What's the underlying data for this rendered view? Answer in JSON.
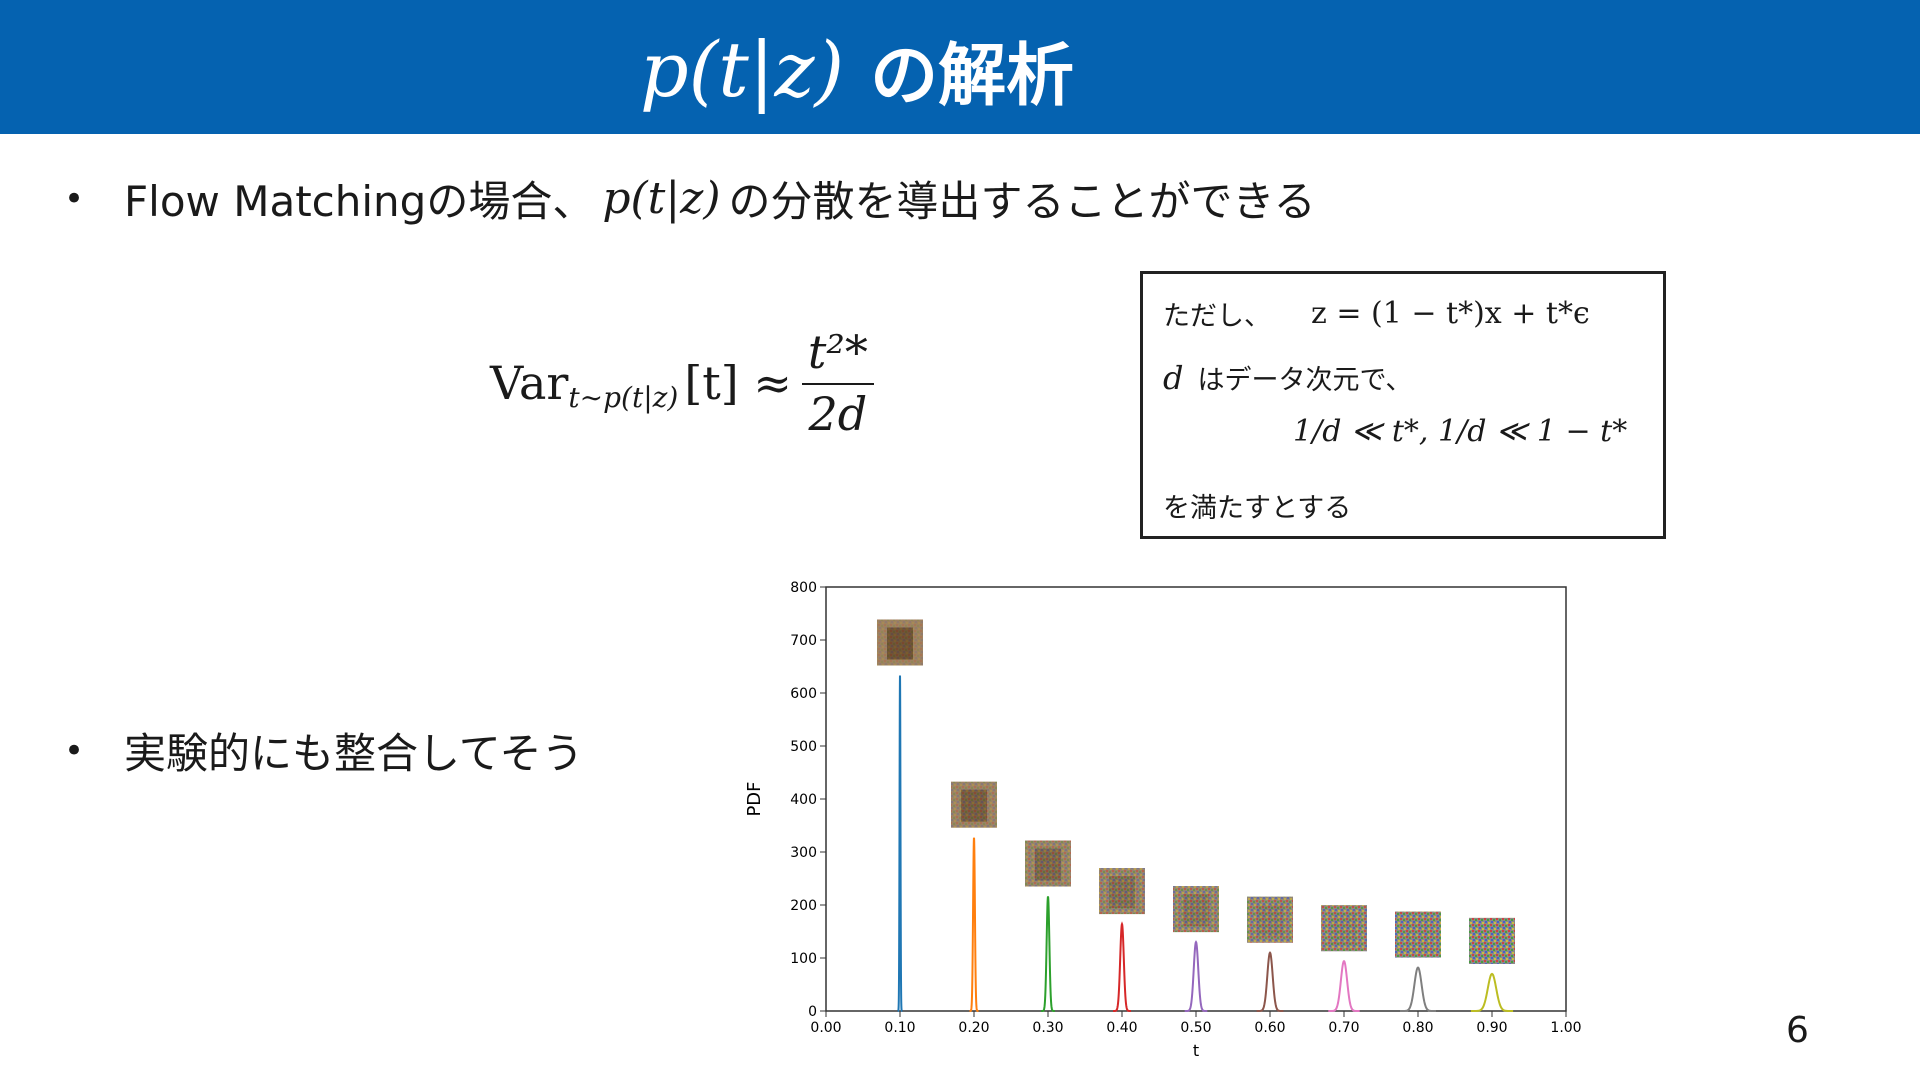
{
  "header": {
    "title_math": "p(t|z)",
    "title_text": "の解析",
    "background": "#0562b0"
  },
  "bullets": [
    {
      "prefix": "Flow Matchingの場合、",
      "math": "p(t|z)",
      "suffix": " の分散を導出することができる"
    },
    {
      "text": "実験的にも整合してそう"
    }
  ],
  "equation": {
    "lhs": "Var",
    "sub": "t∼p(t|z)",
    "arg": "[t] ≈",
    "num": "t²*",
    "den": "2d"
  },
  "note": {
    "line1_text": "ただし、",
    "line1_math": "z = (1 − t*)x + t*ϵ",
    "line2_math": "d",
    "line2_text": "はデータ次元で、",
    "line3_math": "1/d ≪ t*, 1/d ≪ 1 − t*",
    "line4_text": "を満たすとする"
  },
  "chart_data": {
    "type": "line",
    "xlabel": "t",
    "ylabel": "PDF",
    "xlim": [
      0,
      1
    ],
    "ylim": [
      0,
      800
    ],
    "x_ticks": [
      "0.00",
      "0.10",
      "0.20",
      "0.30",
      "0.40",
      "0.50",
      "0.60",
      "0.70",
      "0.80",
      "0.90",
      "1.00"
    ],
    "y_ticks": [
      "0",
      "100",
      "200",
      "300",
      "400",
      "500",
      "600",
      "700",
      "800"
    ],
    "series": [
      {
        "center": 0.1,
        "peak": 633,
        "color": "#1f77b4"
      },
      {
        "center": 0.2,
        "peak": 327,
        "color": "#ff7f0e"
      },
      {
        "center": 0.3,
        "peak": 216,
        "color": "#2ca02c"
      },
      {
        "center": 0.4,
        "peak": 164,
        "color": "#d62728"
      },
      {
        "center": 0.5,
        "peak": 130,
        "color": "#9467bd"
      },
      {
        "center": 0.6,
        "peak": 110,
        "color": "#8c564b"
      },
      {
        "center": 0.7,
        "peak": 94,
        "color": "#e377c2"
      },
      {
        "center": 0.8,
        "peak": 82,
        "color": "#7f7f7f"
      },
      {
        "center": 0.9,
        "peak": 70,
        "color": "#bcbd22"
      }
    ]
  },
  "page_number": "6"
}
